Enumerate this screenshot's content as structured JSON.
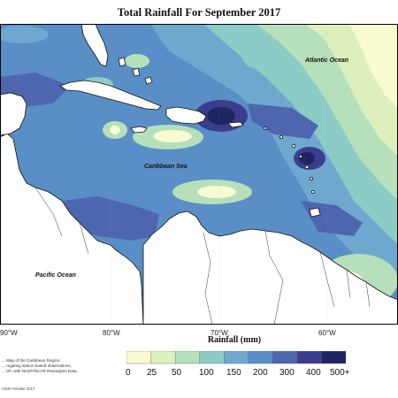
{
  "title": "Total Rainfall For September 2017",
  "map_labels": {
    "atlantic": "Atlantic Ocean",
    "caribbean": "Caribbean Sea",
    "pacific": "Pacific Ocean"
  },
  "longitude_labels": [
    "90°W",
    "80°W",
    "70°W",
    "60°W"
  ],
  "legend": {
    "title": "Rainfall (mm)",
    "ticks": [
      "0",
      "25",
      "50",
      "100",
      "150",
      "200",
      "300",
      "400",
      "500+"
    ],
    "colors": [
      "#fafad2",
      "#dcefbd",
      "#b5e0ba",
      "#8ccbc6",
      "#6fa8cf",
      "#5a8ec6",
      "#4e66b0",
      "#3b3d8e",
      "#1e2560"
    ]
  },
  "caption": [
    "... Map of the Caribbean Region.",
    "... regating station based observations,",
    "... DF, with NCEP/NCAR Reanalysis Data."
  ],
  "credit": "CIMH October 2017",
  "colors": {
    "land": "#ffffff",
    "coast": "#111111"
  }
}
